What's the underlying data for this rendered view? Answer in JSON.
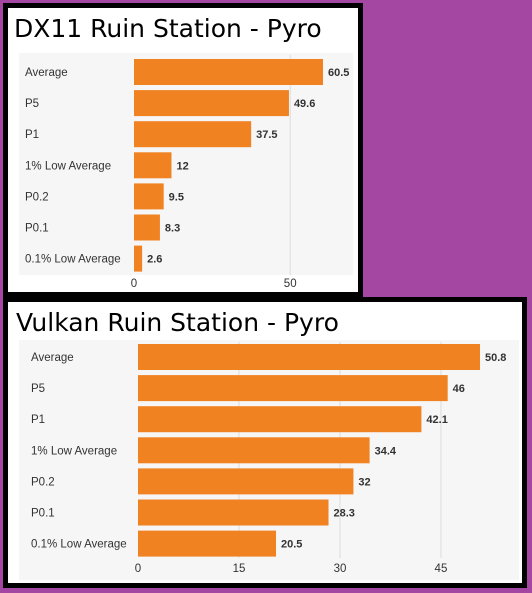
{
  "colors": {
    "background": "#a347a3",
    "bar": "#f08222",
    "grid": "#dcdcdc"
  },
  "chart_data": [
    {
      "type": "bar",
      "orientation": "horizontal",
      "title": "DX11 Ruin Station - Pyro",
      "categories": [
        "Average",
        "P5",
        "P1",
        "1% Low Average",
        "P0.2",
        "P0.1",
        "0.1% Low Average"
      ],
      "values": [
        60.5,
        49.6,
        37.5,
        12,
        9.5,
        8.3,
        2.6
      ],
      "value_labels": [
        "60.5",
        "49.6",
        "37.5",
        "12",
        "9.5",
        "8.3",
        "2.6"
      ],
      "xlim": [
        0,
        60.5
      ],
      "xticks": [
        0,
        50
      ],
      "xtick_labels": [
        "0",
        "50"
      ],
      "grid": true
    },
    {
      "type": "bar",
      "orientation": "horizontal",
      "title": "Vulkan Ruin Station - Pyro",
      "categories": [
        "Average",
        "P5",
        "P1",
        "1% Low Average",
        "P0.2",
        "P0.1",
        "0.1% Low Average"
      ],
      "values": [
        50.8,
        46,
        42.1,
        34.4,
        32,
        28.3,
        20.5
      ],
      "value_labels": [
        "50.8",
        "46",
        "42.1",
        "34.4",
        "32",
        "28.3",
        "20.5"
      ],
      "xlim": [
        0,
        50.8
      ],
      "xticks": [
        0,
        15,
        30,
        45
      ],
      "xtick_labels": [
        "0",
        "15",
        "30",
        "45"
      ],
      "grid": true
    }
  ]
}
